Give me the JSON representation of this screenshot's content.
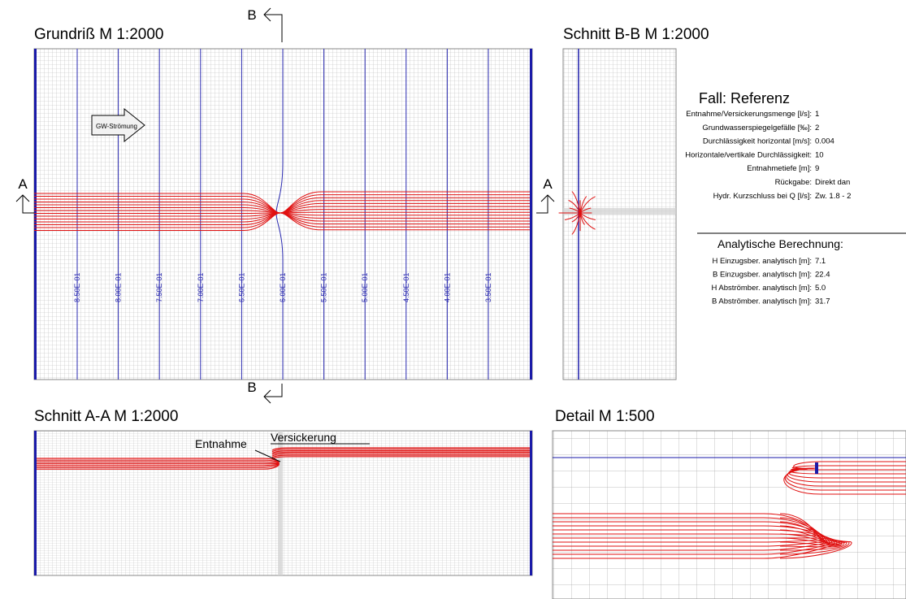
{
  "plan": {
    "title": "Grundriß M 1:2000",
    "section_a": "A",
    "section_b": "B",
    "arrow_label": "GW-Strömung",
    "contours": [
      "8.50E-01",
      "8.00E-01",
      "7.50E-01",
      "7.00E-01",
      "6.50E-01",
      "6.00E-01",
      "5.50E-01",
      "5.00E-01",
      "4.50E-01",
      "4.00E-01",
      "3.50E-01"
    ]
  },
  "section_bb": {
    "title": "Schnitt B-B  M 1:2000"
  },
  "section_aa": {
    "title": "Schnitt A-A  M 1:2000",
    "extraction": "Entnahme",
    "infiltration": "Versickerung"
  },
  "detail": {
    "title": "Detail  M 1:500"
  },
  "case": {
    "title": "Fall: Referenz",
    "parameters": [
      {
        "label": "Entnahme/Versickerungsmenge [l/s]:",
        "value": "1"
      },
      {
        "label": "Grundwasserspiegelgefälle [‰]:",
        "value": "2"
      },
      {
        "label": "Durchlässigkeit horizontal [m/s]:",
        "value": "0.004"
      },
      {
        "label": "Horizontale/vertikale Durchlässigkeit:",
        "value": "10"
      },
      {
        "label": "Entnahmetiefe [m]:",
        "value": "9"
      },
      {
        "label": "Rückgabe:",
        "value": "Direkt dan"
      },
      {
        "label": "Hydr. Kurzschluss bei Q [l/s]:",
        "value": "Zw. 1.8 - 2"
      }
    ]
  },
  "analysis": {
    "title": "Analytische Berechnung:",
    "results": [
      {
        "label": "H Einzugsber. analytisch [m]:",
        "value": "7.1"
      },
      {
        "label": "B Einzugsber. analytisch [m]:",
        "value": "22.4"
      },
      {
        "label": "H Abströmber. analytisch [m]:",
        "value": "5.0"
      },
      {
        "label": "B Abströmber. analytisch [m]:",
        "value": "31.7"
      }
    ]
  }
}
